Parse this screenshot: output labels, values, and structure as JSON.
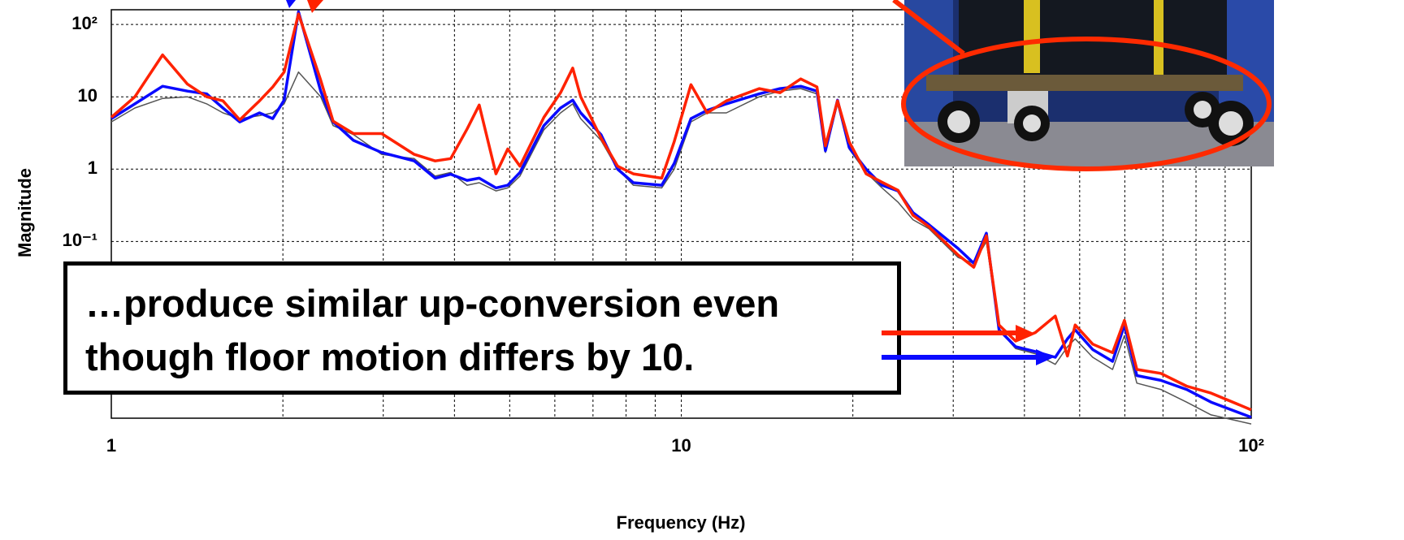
{
  "chart_data": {
    "type": "line",
    "x_label": "Frequency (Hz)",
    "y_label": "Magnitude",
    "log_x": true,
    "log_y": true,
    "grid": true,
    "xlim": [
      1,
      100
    ],
    "ylim": [
      0.00036,
      160
    ],
    "xticks": [
      1,
      10,
      {
        "value": 100,
        "label": "10²"
      }
    ],
    "yticks": [
      {
        "value": 100,
        "label": "10²"
      },
      10,
      1,
      {
        "value": 0.1,
        "label": "10⁻¹"
      }
    ],
    "x_minor_grid": [
      2,
      3,
      4,
      5,
      6,
      7,
      8,
      9,
      20,
      30,
      40,
      50,
      60,
      70,
      80,
      90
    ],
    "x": [
      1.0,
      1.1,
      1.23,
      1.36,
      1.47,
      1.57,
      1.68,
      1.82,
      1.92,
      2.01,
      2.13,
      2.33,
      2.45,
      2.66,
      2.98,
      3.4,
      3.7,
      3.94,
      4.21,
      4.42,
      4.73,
      4.96,
      5.21,
      5.74,
      6.14,
      6.45,
      6.66,
      7.23,
      7.73,
      8.24,
      9.24,
      9.72,
      10.4,
      11.1,
      12.0,
      13.7,
      14.9,
      16.2,
      17.3,
      17.9,
      18.8,
      19.7,
      21.1,
      22.5,
      24.0,
      25.5,
      27.2,
      30.6,
      32.6,
      34.3,
      36.1,
      38.6,
      41.8,
      45.3,
      47.6,
      49.1,
      52.7,
      57.1,
      59.9,
      63.0,
      69.4,
      77.0,
      85.0,
      100
    ],
    "series": [
      {
        "color": "#555555",
        "values": [
          4.5,
          7,
          9.5,
          10,
          8,
          6,
          5,
          5.5,
          6,
          8,
          22,
          10,
          4,
          3,
          1.6,
          1.4,
          0.8,
          0.9,
          0.6,
          0.65,
          0.5,
          0.55,
          0.8,
          3.5,
          6,
          8,
          5,
          2.5,
          1,
          0.6,
          0.55,
          1,
          4.5,
          6,
          6,
          10,
          12,
          13,
          11,
          1.7,
          8,
          1.9,
          0.9,
          0.55,
          0.35,
          0.2,
          0.15,
          0.06,
          0.05,
          0.1,
          0.006,
          0.0033,
          0.0028,
          0.002,
          0.0035,
          0.0045,
          0.0025,
          0.0017,
          0.005,
          0.0011,
          0.0009,
          0.0006,
          0.0004,
          0.0003
        ]
      },
      {
        "color": "#0a0aff",
        "values": [
          5,
          8,
          14,
          12,
          11,
          7,
          4.5,
          6,
          5,
          9,
          150,
          12,
          4.5,
          2.5,
          1.7,
          1.3,
          0.75,
          0.85,
          0.7,
          0.75,
          0.55,
          0.6,
          0.9,
          4,
          7,
          9,
          6,
          3,
          1,
          0.65,
          0.6,
          1.2,
          5,
          6.5,
          8,
          11,
          13,
          14,
          12,
          1.8,
          9,
          2,
          1,
          0.6,
          0.5,
          0.25,
          0.17,
          0.08,
          0.05,
          0.13,
          0.006,
          0.0035,
          0.003,
          0.0025,
          0.0045,
          0.006,
          0.0032,
          0.0022,
          0.007,
          0.0014,
          0.0012,
          0.0009,
          0.0006,
          0.00037
        ]
      },
      {
        "color": "#ff2200",
        "values": [
          5.2,
          10,
          38,
          15,
          10,
          8.8,
          4.8,
          8.8,
          13.7,
          22,
          140,
          17,
          4.6,
          3.1,
          3.1,
          1.6,
          1.3,
          1.4,
          3.6,
          7.7,
          0.86,
          1.9,
          1.1,
          5.2,
          11.4,
          25,
          10,
          2.7,
          1.1,
          0.86,
          0.75,
          2.4,
          14.7,
          6,
          8.8,
          13,
          11.4,
          17.7,
          13.7,
          2.1,
          8.8,
          2.4,
          0.86,
          0.66,
          0.51,
          0.23,
          0.16,
          0.065,
          0.044,
          0.12,
          0.007,
          0.0042,
          0.0055,
          0.0093,
          0.0026,
          0.007,
          0.0038,
          0.0029,
          0.0081,
          0.0017,
          0.0015,
          0.001,
          0.0008,
          0.00047
        ]
      }
    ],
    "annotation": "…produce similar up-conversion even though floor motion differs by 10."
  }
}
